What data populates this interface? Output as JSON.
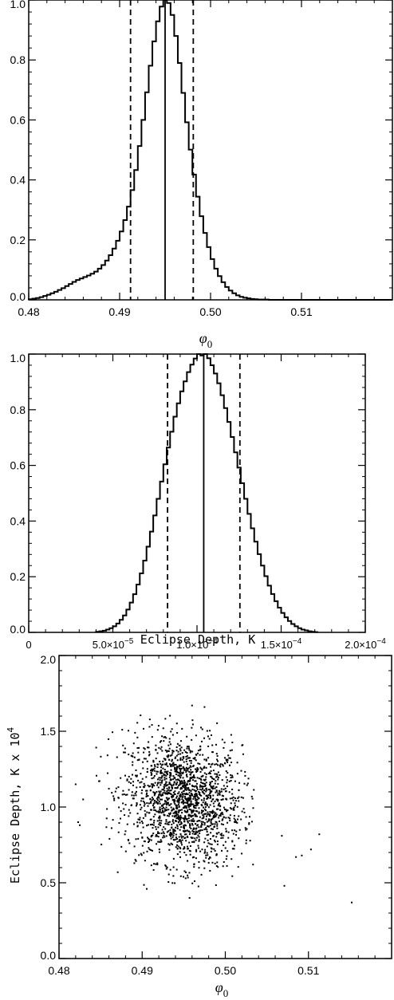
{
  "chart_data": [
    {
      "type": "histogram",
      "xlabel": "φ",
      "xlabel_sub": "0",
      "ylabel": "",
      "xlim": [
        0.48,
        0.52
      ],
      "ylim": [
        0.0,
        1.0
      ],
      "xticks": [
        0.48,
        0.49,
        0.5,
        0.51
      ],
      "xtick_labels": [
        "0.48",
        "0.49",
        "0.50",
        "0.51"
      ],
      "yticks": [
        0.0,
        0.2,
        0.4,
        0.6,
        0.8,
        1.0
      ],
      "ytick_labels": [
        "0.0",
        "0.2",
        "0.4",
        "0.6",
        "0.8",
        "1.0"
      ],
      "median": 0.495,
      "lower_bound": 0.4912,
      "upper_bound": 0.4981,
      "bin_width": 0.0004,
      "x": [
        0.48,
        0.4804,
        0.4808,
        0.4812,
        0.4816,
        0.482,
        0.4824,
        0.4828,
        0.4832,
        0.4836,
        0.484,
        0.4844,
        0.4848,
        0.4852,
        0.4856,
        0.486,
        0.4864,
        0.4868,
        0.4872,
        0.4876,
        0.488,
        0.4884,
        0.4888,
        0.4892,
        0.4896,
        0.49,
        0.4904,
        0.4908,
        0.4912,
        0.4916,
        0.492,
        0.4924,
        0.4928,
        0.4932,
        0.4936,
        0.494,
        0.4944,
        0.4948,
        0.4952,
        0.4956,
        0.496,
        0.4964,
        0.4968,
        0.4972,
        0.4976,
        0.498,
        0.4984,
        0.4988,
        0.4992,
        0.4996,
        0.5,
        0.5004,
        0.5008,
        0.5012,
        0.5016,
        0.502,
        0.5024,
        0.5028,
        0.5032,
        0.5036,
        0.504,
        0.5044,
        0.5048,
        0.5052,
        0.5056,
        0.506,
        0.5064,
        0.5068,
        0.5072,
        0.5076,
        0.508,
        0.5084,
        0.5088,
        0.5092,
        0.5096,
        0.51,
        0.5104,
        0.5108,
        0.5112,
        0.5116,
        0.512,
        0.5124,
        0.5128,
        0.5132,
        0.5136,
        0.514,
        0.5144,
        0.5148,
        0.5152,
        0.5156,
        0.516,
        0.5164,
        0.5168,
        0.5172,
        0.5176,
        0.518,
        0.5184,
        0.5188,
        0.5192,
        0.5196
      ],
      "values": [
        0.002,
        0.004,
        0.006,
        0.009,
        0.013,
        0.017,
        0.022,
        0.027,
        0.033,
        0.039,
        0.046,
        0.053,
        0.06,
        0.066,
        0.071,
        0.076,
        0.081,
        0.087,
        0.094,
        0.104,
        0.116,
        0.131,
        0.149,
        0.171,
        0.197,
        0.228,
        0.266,
        0.311,
        0.366,
        0.433,
        0.513,
        0.6,
        0.692,
        0.781,
        0.862,
        0.929,
        0.978,
        1.0,
        0.99,
        0.95,
        0.88,
        0.79,
        0.69,
        0.592,
        0.501,
        0.418,
        0.344,
        0.279,
        0.223,
        0.176,
        0.136,
        0.104,
        0.079,
        0.059,
        0.043,
        0.031,
        0.022,
        0.015,
        0.01,
        0.007,
        0.005,
        0.003,
        0.002,
        0.001,
        0.001,
        0.001,
        0.0,
        0.0,
        0.0,
        0.0,
        0.0,
        0.0,
        0.0,
        0.0,
        0.0,
        0.0,
        0.0,
        0.0,
        0.0,
        0.0,
        0.0,
        0.0,
        0.0,
        0.0,
        0.0,
        0.0,
        0.0,
        0.0,
        0.0,
        0.0,
        0.0,
        0.0,
        0.0,
        0.0,
        0.0,
        0.0,
        0.0,
        0.0,
        0.0,
        0.0
      ]
    },
    {
      "type": "histogram",
      "xlabel": "Eclipse Depth, K",
      "ylabel": "",
      "xlim": [
        0.0,
        0.0002
      ],
      "ylim": [
        0.0,
        1.0
      ],
      "xticks": [
        0.0,
        5e-05,
        0.0001,
        0.00015,
        0.0002
      ],
      "xtick_labels": [
        {
          "mant": "0",
          "exp": ""
        },
        {
          "mant": "5.0×10",
          "exp": "−5"
        },
        {
          "mant": "1.0×10",
          "exp": "−4"
        },
        {
          "mant": "1.5×10",
          "exp": "−4"
        },
        {
          "mant": "2.0×10",
          "exp": "−4"
        }
      ],
      "yticks": [
        0.0,
        0.2,
        0.4,
        0.6,
        0.8,
        1.0
      ],
      "ytick_labels": [
        "0.0",
        "0.2",
        "0.4",
        "0.6",
        "0.8",
        "1.0"
      ],
      "median": 0.000104,
      "lower_bound": 8.25e-05,
      "upper_bound": 0.0001255,
      "bin_width": 2e-06,
      "x": [
        4e-05,
        4.2e-05,
        4.4e-05,
        4.6e-05,
        4.8e-05,
        5e-05,
        5.2e-05,
        5.4e-05,
        5.6e-05,
        5.8e-05,
        6e-05,
        6.2e-05,
        6.4e-05,
        6.6e-05,
        6.8e-05,
        7e-05,
        7.2e-05,
        7.4e-05,
        7.6e-05,
        7.8e-05,
        8e-05,
        8.2e-05,
        8.4e-05,
        8.6e-05,
        8.8e-05,
        9e-05,
        9.2e-05,
        9.4e-05,
        9.6e-05,
        9.8e-05,
        0.0001,
        0.000102,
        0.000104,
        0.000106,
        0.000108,
        0.00011,
        0.000112,
        0.000114,
        0.000116,
        0.000118,
        0.00012,
        0.000122,
        0.000124,
        0.000126,
        0.000128,
        0.00013,
        0.000132,
        0.000134,
        0.000136,
        0.000138,
        0.00014,
        0.000142,
        0.000144,
        0.000146,
        0.000148,
        0.00015,
        0.000152,
        0.000154,
        0.000156,
        0.000158,
        0.00016,
        0.000162,
        0.000164,
        0.000166,
        0.000168,
        0.00017
      ],
      "values": [
        0.002,
        0.004,
        0.006,
        0.01,
        0.015,
        0.022,
        0.032,
        0.045,
        0.061,
        0.082,
        0.107,
        0.137,
        0.172,
        0.212,
        0.258,
        0.308,
        0.362,
        0.42,
        0.48,
        0.542,
        0.604,
        0.664,
        0.721,
        0.775,
        0.823,
        0.866,
        0.902,
        0.935,
        0.962,
        0.984,
        1.0,
        0.995,
        1.0,
        0.985,
        0.96,
        0.93,
        0.895,
        0.852,
        0.806,
        0.756,
        0.702,
        0.647,
        0.592,
        0.536,
        0.48,
        0.426,
        0.374,
        0.326,
        0.281,
        0.24,
        0.202,
        0.168,
        0.138,
        0.112,
        0.089,
        0.07,
        0.054,
        0.041,
        0.03,
        0.022,
        0.015,
        0.01,
        0.007,
        0.004,
        0.002,
        0.001
      ]
    },
    {
      "type": "scatter",
      "xlabel": "φ",
      "xlabel_sub": "0",
      "ylabel": "Eclipse Depth, K x 10",
      "ylabel_exp": "4",
      "xlim": [
        0.48,
        0.52
      ],
      "ylim": [
        0.0,
        2.0
      ],
      "xticks": [
        0.48,
        0.49,
        0.5,
        0.51
      ],
      "xtick_labels": [
        "0.48",
        "0.49",
        "0.50",
        "0.51"
      ],
      "yticks": [
        0.0,
        0.5,
        1.0,
        1.5,
        2.0
      ],
      "ytick_labels": [
        "0.0",
        "0.5",
        "1.0",
        "1.5",
        "2.0"
      ],
      "points_note": "dense cloud of ~2000 MCMC samples centred near (0.495, 1.04)",
      "center_x": 0.495,
      "center_y": 1.04,
      "sigma_x": 0.0035,
      "sigma_y": 0.21,
      "n_points": 1800,
      "outliers": [
        {
          "x": 0.482,
          "y": 1.15
        },
        {
          "x": 0.4823,
          "y": 0.9
        },
        {
          "x": 0.4825,
          "y": 0.88
        },
        {
          "x": 0.4829,
          "y": 1.05
        },
        {
          "x": 0.5068,
          "y": 0.81
        },
        {
          "x": 0.5071,
          "y": 0.48
        },
        {
          "x": 0.5085,
          "y": 0.67
        },
        {
          "x": 0.5092,
          "y": 0.68
        },
        {
          "x": 0.5103,
          "y": 0.72
        },
        {
          "x": 0.5113,
          "y": 0.82
        },
        {
          "x": 0.5152,
          "y": 0.37
        },
        {
          "x": 0.4876,
          "y": 1.51
        },
        {
          "x": 0.496,
          "y": 1.67
        },
        {
          "x": 0.4975,
          "y": 1.66
        },
        {
          "x": 0.4957,
          "y": 0.4
        },
        {
          "x": 0.4981,
          "y": 1.45
        },
        {
          "x": 0.4998,
          "y": 1.39
        }
      ]
    }
  ]
}
